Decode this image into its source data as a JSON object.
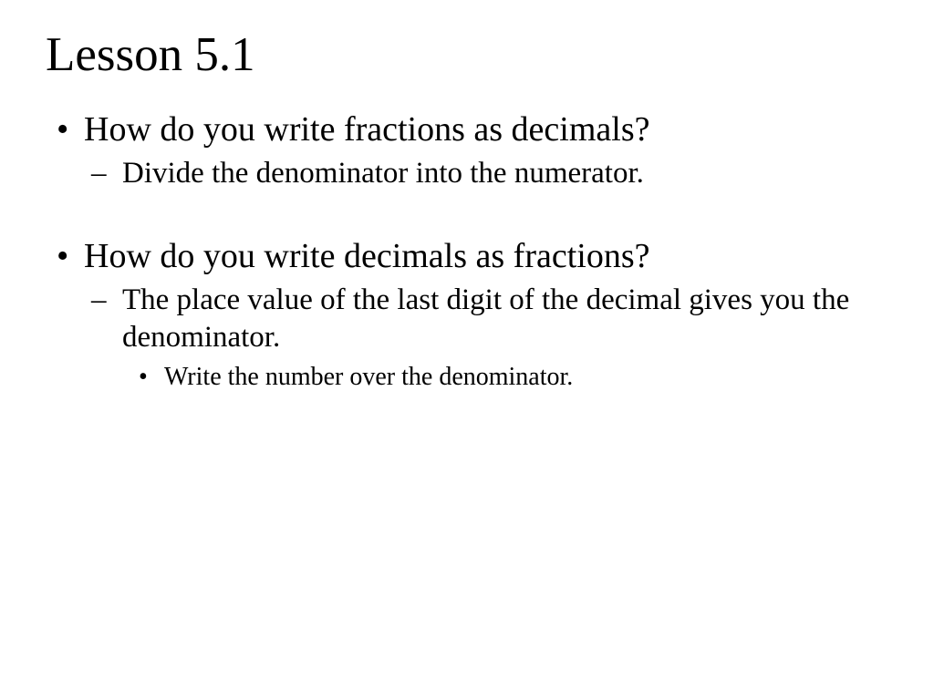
{
  "slide": {
    "title": "Lesson 5.1",
    "background_color": "#ffffff",
    "text_color": "#000000",
    "font_family": "Times New Roman",
    "title_fontsize": 53,
    "bullets": [
      {
        "text": "How do you write fractions as decimals?",
        "fontsize": 38,
        "marker": "disc",
        "children": [
          {
            "text": "Divide the denominator into the numerator.",
            "fontsize": 33,
            "marker": "dash",
            "children": []
          }
        ]
      },
      {
        "text": "How do you write decimals as fractions?",
        "fontsize": 38,
        "marker": "disc",
        "children": [
          {
            "text": "The place value of the last digit of the decimal gives you the denominator.",
            "fontsize": 33,
            "marker": "dash",
            "children": [
              {
                "text": "Write the number over the denominator.",
                "fontsize": 28,
                "marker": "disc",
                "children": []
              }
            ]
          }
        ]
      }
    ]
  }
}
